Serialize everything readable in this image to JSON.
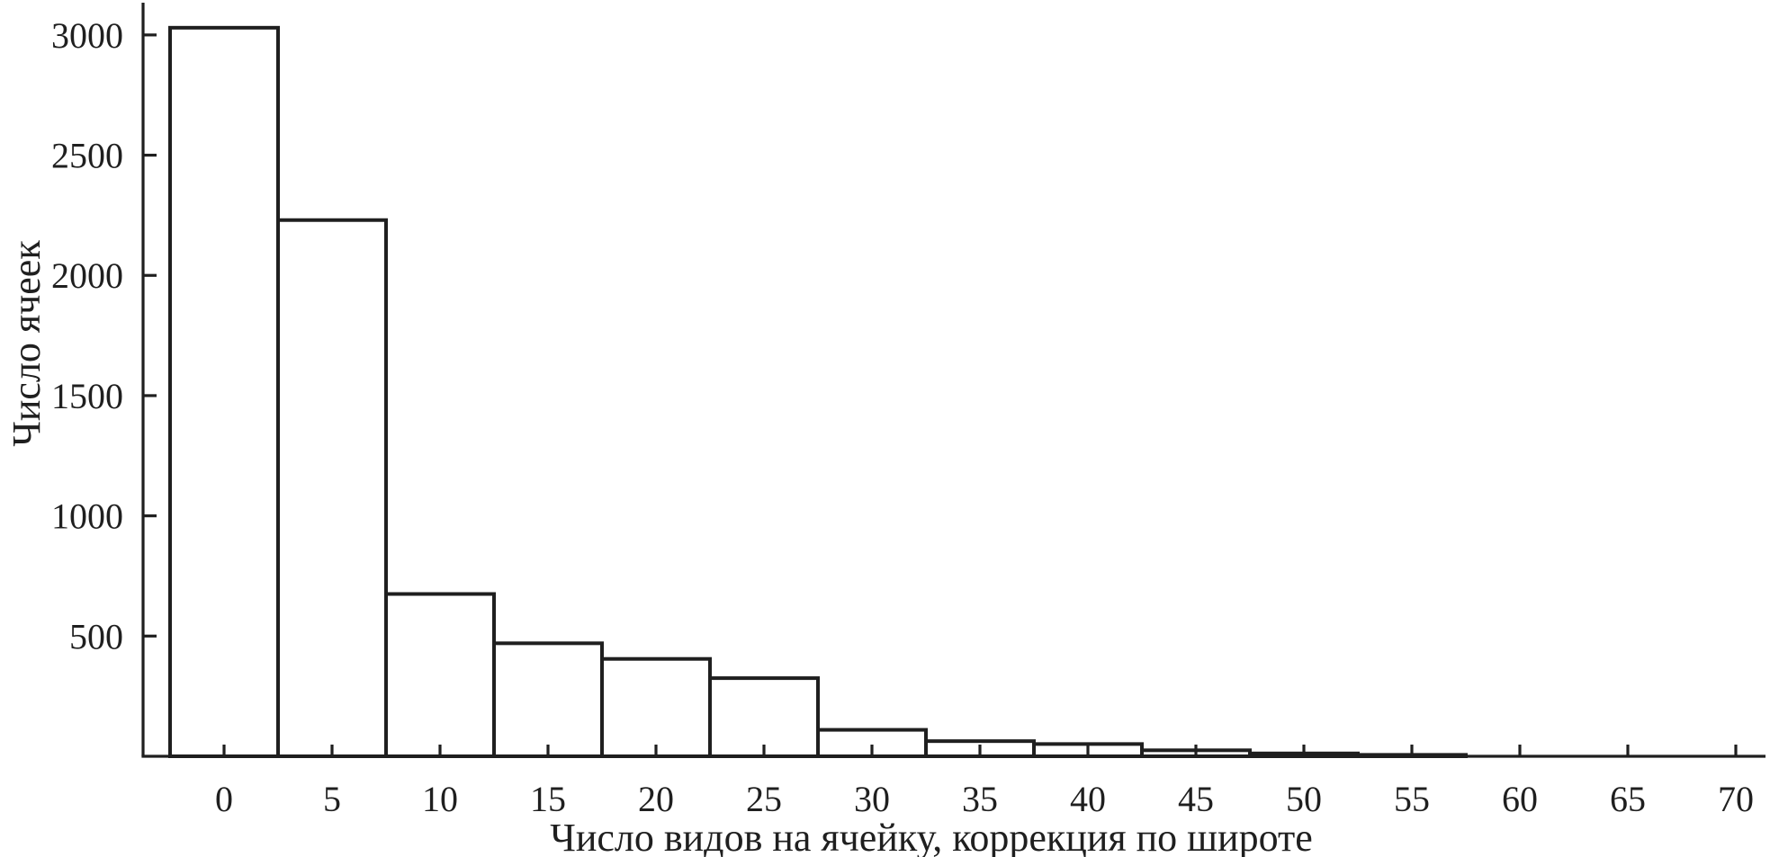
{
  "figure": {
    "background": "#ffffff",
    "ink_color": "#1f1f1f",
    "bar_fill": "#ffffff"
  },
  "chart_data": {
    "type": "bar",
    "subtype": "histogram",
    "title": "",
    "xlabel": "Число видов на ячейку, коррекция по широте",
    "ylabel": "Число ячеек",
    "bin_width": 5,
    "bin_centers": [
      0,
      5,
      10,
      15,
      20,
      25,
      30,
      35,
      40,
      45,
      50,
      55
    ],
    "bin_edges": [
      -2.5,
      2.5,
      7.5,
      12.5,
      17.5,
      22.5,
      27.5,
      32.5,
      37.5,
      42.5,
      47.5,
      52.5,
      57.5
    ],
    "values": [
      3030,
      2230,
      675,
      470,
      405,
      325,
      110,
      63,
      51,
      25,
      12,
      6
    ],
    "x_ticks": [
      0,
      5,
      10,
      15,
      20,
      25,
      30,
      35,
      40,
      45,
      50,
      55,
      60,
      65,
      70
    ],
    "y_ticks": [
      500,
      1000,
      1500,
      2000,
      2500,
      3000
    ],
    "xlim": [
      -4,
      71.4
    ],
    "ylim": [
      0,
      3115
    ],
    "grid": "off",
    "legend": "none",
    "bar_stroke": "#1f1f1f"
  }
}
